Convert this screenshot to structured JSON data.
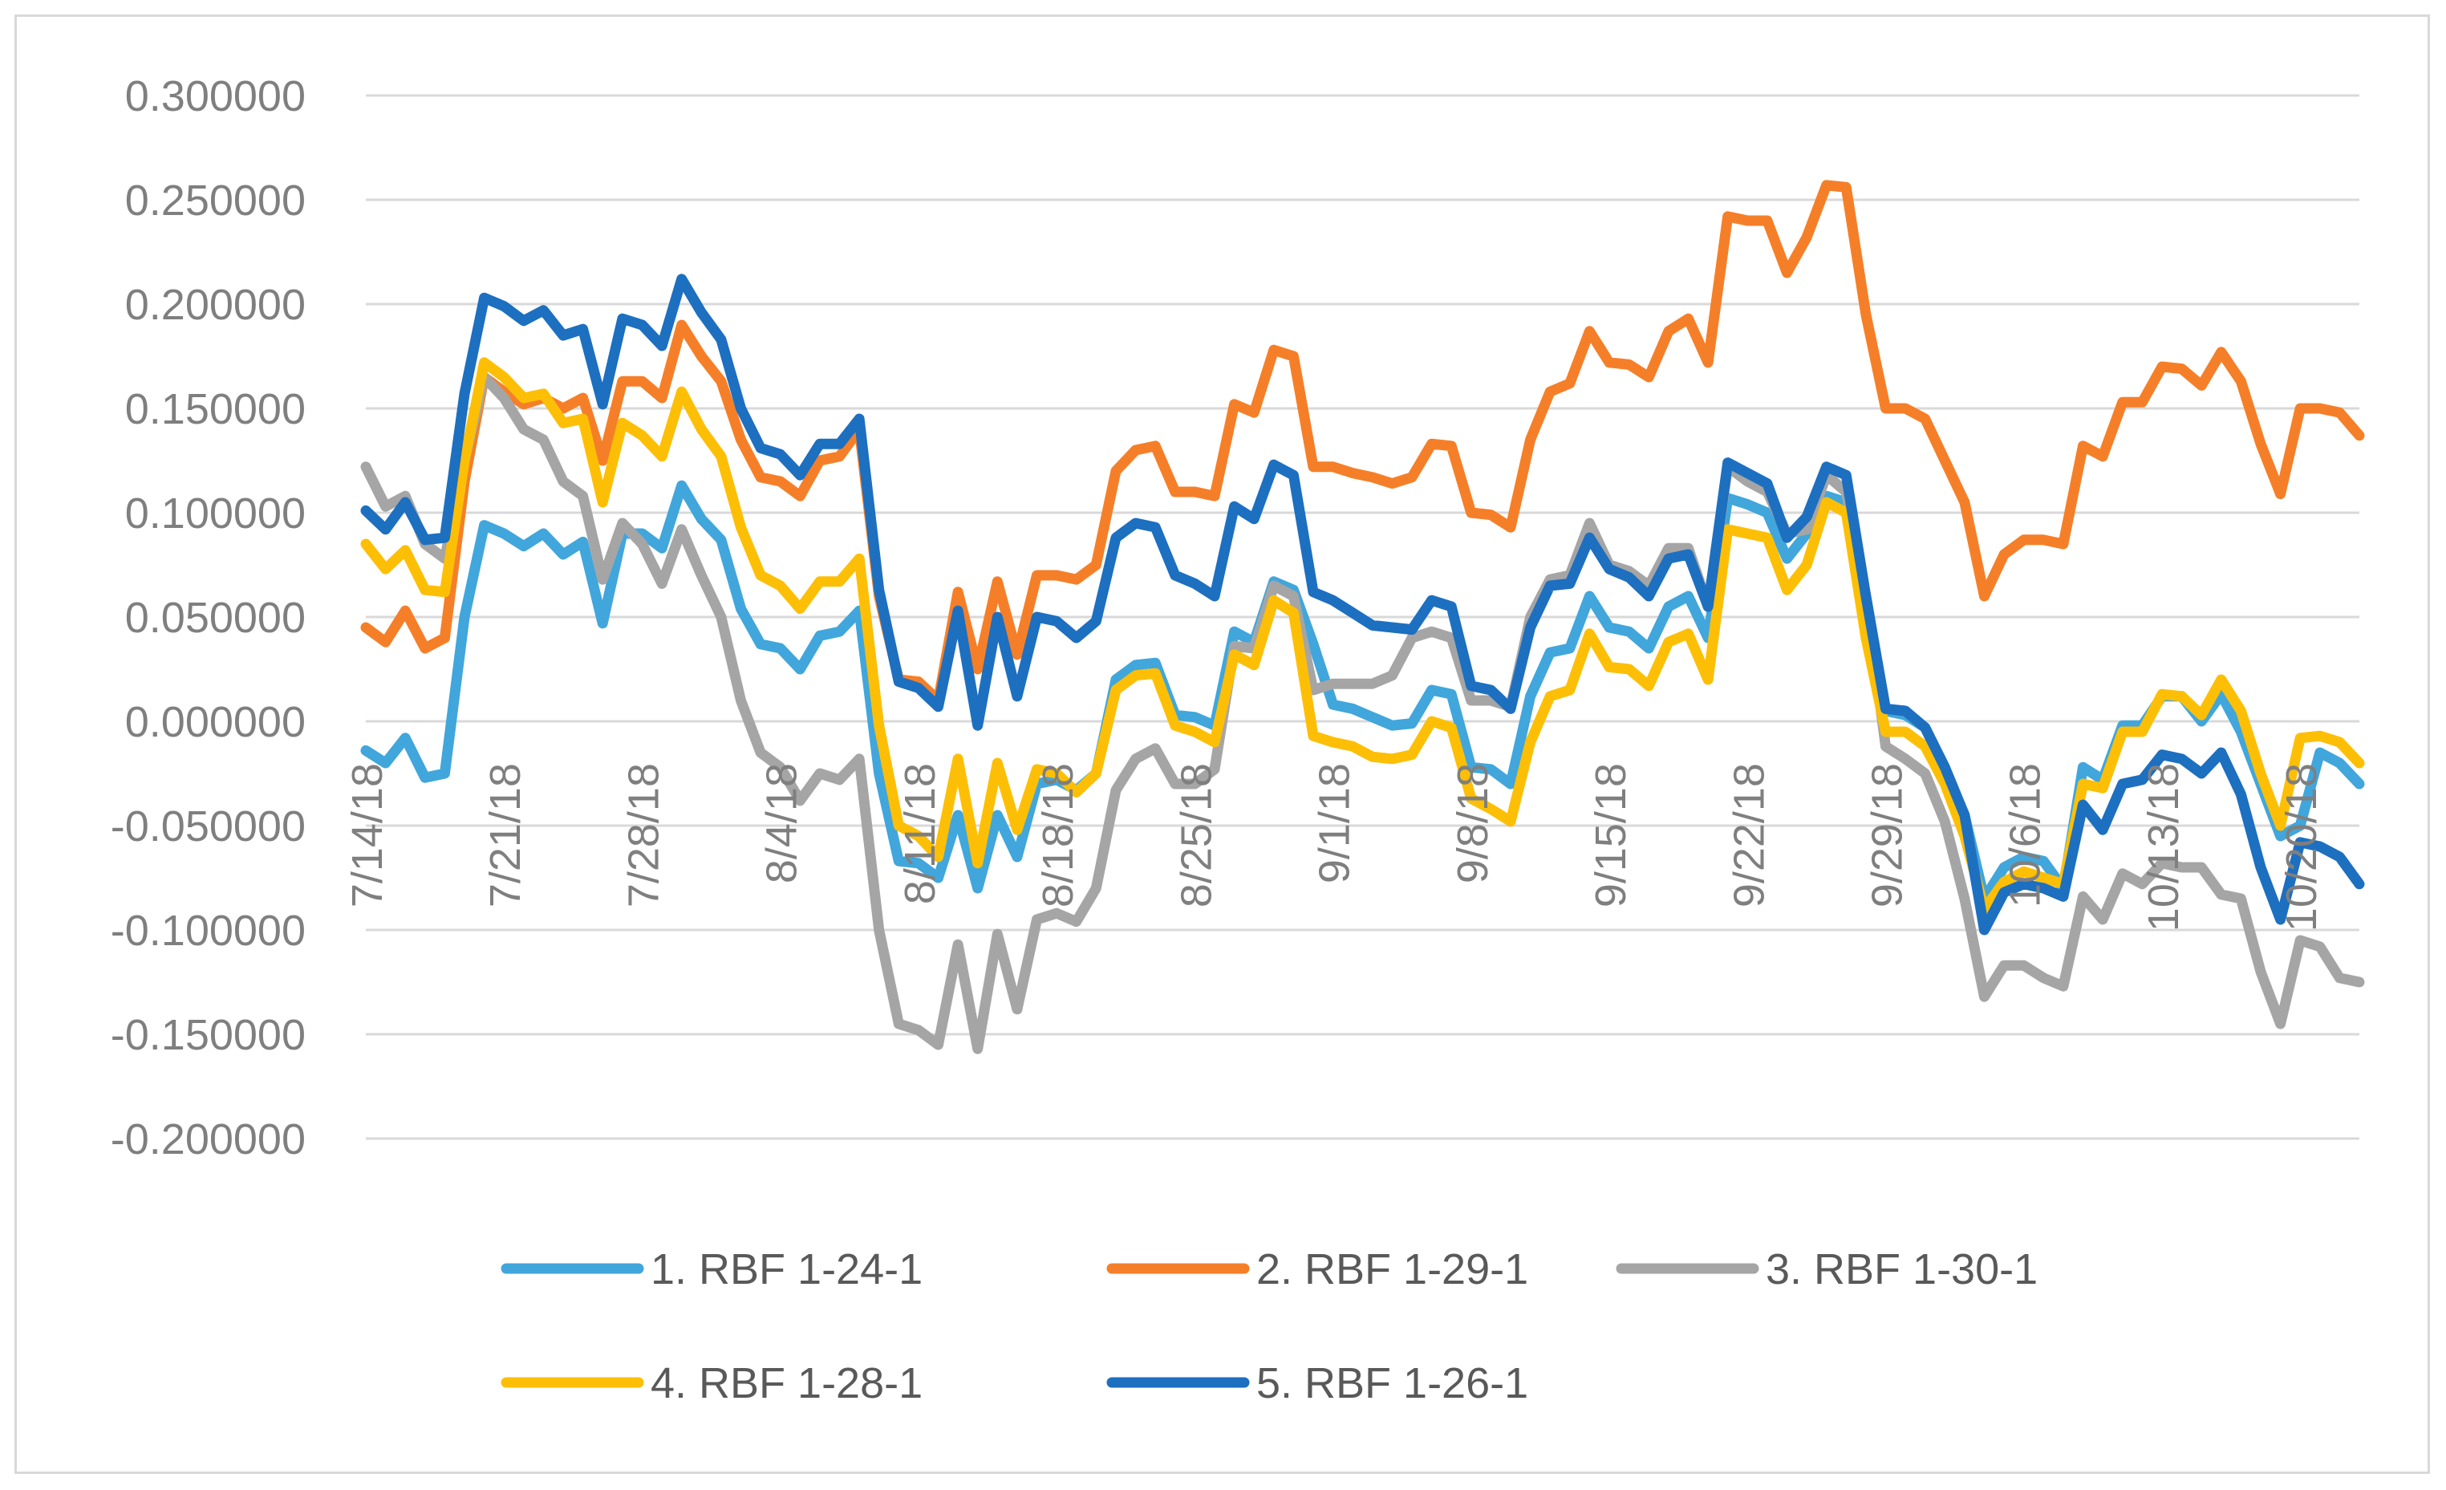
{
  "chart_data": {
    "type": "line",
    "title": "",
    "xlabel": "",
    "ylabel": "",
    "ylim": [
      -0.2,
      0.3
    ],
    "yticks": [
      "0.300000",
      "0.250000",
      "0.200000",
      "0.150000",
      "0.100000",
      "0.050000",
      "0.000000",
      "-0.050000",
      "-0.100000",
      "-0.150000",
      "-0.200000"
    ],
    "ytick_values": [
      0.3,
      0.25,
      0.2,
      0.15,
      0.1,
      0.05,
      0.0,
      -0.05,
      -0.1,
      -0.15,
      -0.2
    ],
    "x_start": "7/14/18",
    "x_end": "10/23/18",
    "n_points": 102,
    "x_tick_labels": [
      "7/14/18",
      "7/21/18",
      "7/28/18",
      "8/4/18",
      "8/11/18",
      "8/18/18",
      "8/25/18",
      "9/1/18",
      "9/8/18",
      "9/15/18",
      "9/22/18",
      "9/29/18",
      "10/6/18",
      "10/13/18",
      "10/20/18"
    ],
    "x_tick_indices": [
      0,
      7,
      14,
      21,
      28,
      35,
      42,
      49,
      56,
      63,
      70,
      77,
      84,
      91,
      98
    ],
    "legend_position": "bottom",
    "grid": true,
    "series": [
      {
        "name": "1. RBF 1-24-1",
        "color": "#41a6db",
        "values": [
          -0.014,
          -0.02,
          -0.008,
          -0.027,
          -0.025,
          0.05,
          0.094,
          0.09,
          0.084,
          0.09,
          0.08,
          0.086,
          0.047,
          0.09,
          0.09,
          0.083,
          0.113,
          0.097,
          0.087,
          0.054,
          0.037,
          0.035,
          0.025,
          0.041,
          0.043,
          0.053,
          -0.025,
          -0.067,
          -0.068,
          -0.075,
          -0.045,
          -0.08,
          -0.045,
          -0.065,
          -0.03,
          -0.028,
          -0.033,
          -0.025,
          0.02,
          0.027,
          0.028,
          0.003,
          0.002,
          -0.002,
          0.043,
          0.038,
          0.067,
          0.063,
          0.037,
          0.008,
          0.006,
          0.002,
          -0.002,
          -0.001,
          0.015,
          0.013,
          -0.022,
          -0.023,
          -0.03,
          0.012,
          0.033,
          0.035,
          0.06,
          0.045,
          0.043,
          0.035,
          0.055,
          0.06,
          0.04,
          0.107,
          0.104,
          0.1,
          0.078,
          0.09,
          0.108,
          0.105,
          0.06,
          0.005,
          0.003,
          -0.003,
          -0.023,
          -0.045,
          -0.085,
          -0.07,
          -0.065,
          -0.067,
          -0.08,
          -0.022,
          -0.028,
          -0.002,
          -0.002,
          0.012,
          0.012,
          0.0,
          0.013,
          -0.005,
          -0.03,
          -0.055,
          -0.05,
          -0.015,
          -0.02,
          -0.03
        ]
      },
      {
        "name": "2. RBF 1-29-1",
        "color": "#f57f28",
        "values": [
          0.045,
          0.038,
          0.053,
          0.035,
          0.04,
          0.115,
          0.165,
          0.158,
          0.152,
          0.155,
          0.15,
          0.155,
          0.125,
          0.163,
          0.163,
          0.155,
          0.19,
          0.175,
          0.163,
          0.135,
          0.117,
          0.115,
          0.108,
          0.125,
          0.127,
          0.14,
          0.06,
          0.02,
          0.019,
          0.01,
          0.062,
          0.025,
          0.067,
          0.032,
          0.07,
          0.07,
          0.068,
          0.075,
          0.12,
          0.13,
          0.132,
          0.11,
          0.11,
          0.108,
          0.152,
          0.148,
          0.178,
          0.175,
          0.122,
          0.122,
          0.119,
          0.117,
          0.114,
          0.117,
          0.133,
          0.132,
          0.1,
          0.099,
          0.093,
          0.135,
          0.158,
          0.162,
          0.187,
          0.172,
          0.171,
          0.165,
          0.187,
          0.193,
          0.172,
          0.242,
          0.24,
          0.24,
          0.215,
          0.232,
          0.257,
          0.256,
          0.195,
          0.15,
          0.15,
          0.145,
          0.125,
          0.105,
          0.06,
          0.08,
          0.087,
          0.087,
          0.085,
          0.132,
          0.127,
          0.153,
          0.153,
          0.17,
          0.169,
          0.161,
          0.177,
          0.163,
          0.133,
          0.109,
          0.15,
          0.15,
          0.148,
          0.137
        ]
      },
      {
        "name": "3. RBF 1-30-1",
        "color": "#a5a5a5",
        "values": [
          0.122,
          0.103,
          0.108,
          0.085,
          0.078,
          0.125,
          0.165,
          0.155,
          0.14,
          0.135,
          0.115,
          0.108,
          0.068,
          0.095,
          0.085,
          0.066,
          0.092,
          0.07,
          0.05,
          0.01,
          -0.015,
          -0.022,
          -0.038,
          -0.025,
          -0.028,
          -0.018,
          -0.1,
          -0.145,
          -0.148,
          -0.155,
          -0.107,
          -0.157,
          -0.102,
          -0.138,
          -0.095,
          -0.092,
          -0.096,
          -0.08,
          -0.033,
          -0.018,
          -0.013,
          -0.03,
          -0.03,
          -0.023,
          0.036,
          0.035,
          0.065,
          0.06,
          0.015,
          0.018,
          0.018,
          0.018,
          0.022,
          0.04,
          0.043,
          0.04,
          0.01,
          0.01,
          0.007,
          0.05,
          0.068,
          0.07,
          0.095,
          0.075,
          0.072,
          0.065,
          0.083,
          0.083,
          0.055,
          0.122,
          0.115,
          0.11,
          0.09,
          0.092,
          0.118,
          0.11,
          0.06,
          -0.012,
          -0.018,
          -0.025,
          -0.048,
          -0.085,
          -0.132,
          -0.117,
          -0.117,
          -0.123,
          -0.127,
          -0.084,
          -0.095,
          -0.073,
          -0.078,
          -0.068,
          -0.07,
          -0.07,
          -0.083,
          -0.085,
          -0.12,
          -0.145,
          -0.105,
          -0.108,
          -0.123,
          -0.125
        ]
      },
      {
        "name": "4. RBF 1-28-1",
        "color": "#fdbf06",
        "values": [
          0.085,
          0.073,
          0.082,
          0.063,
          0.062,
          0.125,
          0.172,
          0.165,
          0.155,
          0.157,
          0.143,
          0.145,
          0.105,
          0.143,
          0.137,
          0.127,
          0.158,
          0.14,
          0.127,
          0.093,
          0.07,
          0.065,
          0.054,
          0.067,
          0.067,
          0.078,
          -0.002,
          -0.05,
          -0.055,
          -0.065,
          -0.018,
          -0.068,
          -0.02,
          -0.052,
          -0.023,
          -0.025,
          -0.034,
          -0.025,
          0.015,
          0.022,
          0.023,
          -0.002,
          -0.005,
          -0.01,
          0.032,
          0.027,
          0.058,
          0.052,
          -0.007,
          -0.01,
          -0.012,
          -0.017,
          -0.018,
          -0.016,
          0.0,
          -0.003,
          -0.037,
          -0.042,
          -0.048,
          -0.01,
          0.012,
          0.015,
          0.042,
          0.026,
          0.025,
          0.017,
          0.038,
          0.042,
          0.02,
          0.092,
          0.09,
          0.088,
          0.063,
          0.075,
          0.105,
          0.1,
          0.04,
          -0.005,
          -0.005,
          -0.012,
          -0.03,
          -0.055,
          -0.09,
          -0.077,
          -0.072,
          -0.075,
          -0.078,
          -0.03,
          -0.032,
          -0.005,
          -0.005,
          0.013,
          0.012,
          0.003,
          0.02,
          0.005,
          -0.025,
          -0.05,
          -0.008,
          -0.007,
          -0.01,
          -0.02
        ]
      },
      {
        "name": "5. RBF 1-26-1",
        "color": "#1d6fc0",
        "values": [
          0.101,
          0.092,
          0.105,
          0.087,
          0.088,
          0.157,
          0.203,
          0.199,
          0.192,
          0.197,
          0.185,
          0.188,
          0.152,
          0.193,
          0.19,
          0.18,
          0.212,
          0.196,
          0.183,
          0.15,
          0.131,
          0.128,
          0.118,
          0.133,
          0.133,
          0.145,
          0.063,
          0.019,
          0.016,
          0.007,
          0.053,
          -0.002,
          0.05,
          0.012,
          0.05,
          0.048,
          0.04,
          0.048,
          0.088,
          0.095,
          0.093,
          0.07,
          0.066,
          0.06,
          0.103,
          0.097,
          0.123,
          0.118,
          0.062,
          0.058,
          0.052,
          0.046,
          0.045,
          0.044,
          0.058,
          0.055,
          0.017,
          0.015,
          0.006,
          0.045,
          0.065,
          0.066,
          0.088,
          0.073,
          0.069,
          0.06,
          0.078,
          0.08,
          0.055,
          0.124,
          0.119,
          0.114,
          0.088,
          0.098,
          0.122,
          0.118,
          0.06,
          0.006,
          0.005,
          -0.003,
          -0.022,
          -0.045,
          -0.1,
          -0.082,
          -0.078,
          -0.08,
          -0.084,
          -0.04,
          -0.052,
          -0.03,
          -0.028,
          -0.016,
          -0.018,
          -0.025,
          -0.015,
          -0.035,
          -0.07,
          -0.095,
          -0.058,
          -0.06,
          -0.065,
          -0.078
        ]
      }
    ]
  }
}
